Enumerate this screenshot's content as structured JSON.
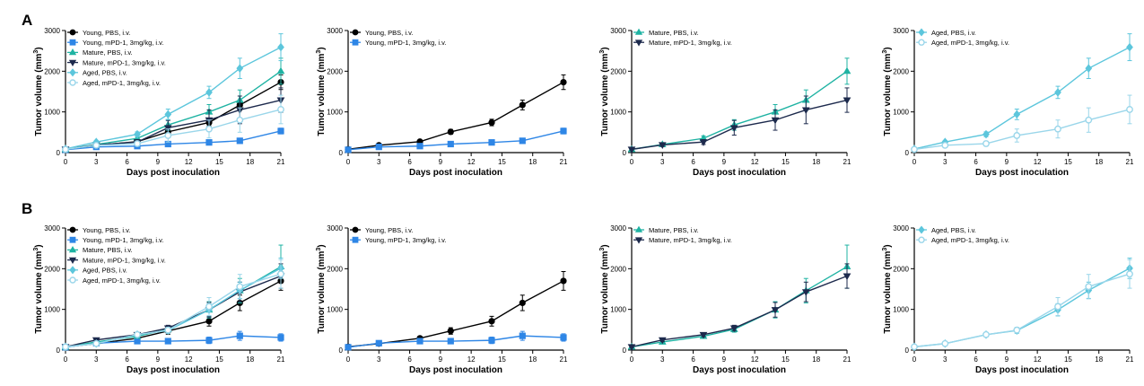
{
  "panel_labels": [
    "A",
    "B"
  ],
  "styles": {
    "young_pbs": {
      "color": "#000000",
      "marker": "circle",
      "filled": true
    },
    "young_pd1": {
      "color": "#2e86e6",
      "marker": "square",
      "filled": true
    },
    "mature_pbs": {
      "color": "#1fb3a3",
      "marker": "triangle-up",
      "filled": true
    },
    "mature_pd1": {
      "color": "#1d2a4d",
      "marker": "triangle-down",
      "filled": true
    },
    "aged_pbs": {
      "color": "#5cc6dc",
      "marker": "diamond",
      "filled": true
    },
    "aged_pd1": {
      "color": "#9ad6ea",
      "marker": "circle",
      "filled": false
    }
  },
  "chart_data": [
    {
      "type": "line",
      "row": "A",
      "xlabel": "Days post inoculation",
      "ylabel": "Tumor volume (mm",
      "ylabel_sup": "3",
      "ylabel_end": ")",
      "xlim": [
        0,
        21
      ],
      "ylim": [
        0,
        3000
      ],
      "xticks": [
        "0",
        "3",
        "6",
        "9",
        "12",
        "15",
        "18",
        "21"
      ],
      "yticks": [
        "0",
        "1000",
        "2000",
        "3000"
      ],
      "x": [
        0,
        3,
        7,
        10,
        14,
        17,
        21
      ],
      "series": [
        {
          "name": "Young, PBS, i.v.",
          "style": "young_pbs",
          "values": [
            80,
            180,
            270,
            510,
            740,
            1170,
            1730
          ],
          "errors": [
            20,
            30,
            40,
            60,
            80,
            120,
            180
          ]
        },
        {
          "name": "Young, mPD-1, 3mg/kg, i.v.",
          "style": "young_pd1",
          "values": [
            70,
            140,
            160,
            210,
            250,
            290,
            530
          ],
          "errors": [
            15,
            25,
            30,
            40,
            40,
            50,
            70
          ]
        },
        {
          "name": "Mature, PBS, i.v.",
          "style": "mature_pbs",
          "values": [
            80,
            200,
            350,
            680,
            1000,
            1290,
            2000
          ],
          "errors": [
            20,
            40,
            60,
            130,
            180,
            250,
            320
          ]
        },
        {
          "name": "Mature, mPD-1, 3mg/kg, i.v.",
          "style": "mature_pd1",
          "values": [
            80,
            190,
            260,
            610,
            800,
            1050,
            1290
          ],
          "errors": [
            20,
            40,
            60,
            180,
            250,
            340,
            300
          ]
        },
        {
          "name": "Aged, PBS, i.v.",
          "style": "aged_pbs",
          "values": [
            90,
            260,
            450,
            940,
            1480,
            2070,
            2590
          ],
          "errors": [
            20,
            40,
            60,
            130,
            150,
            250,
            330
          ]
        },
        {
          "name": "Aged, mPD-1, 3mg/kg, i.v.",
          "style": "aged_pd1",
          "values": [
            80,
            180,
            220,
            420,
            580,
            800,
            1060
          ],
          "errors": [
            20,
            40,
            60,
            160,
            220,
            300,
            350
          ]
        }
      ]
    },
    {
      "type": "line",
      "row": "A",
      "xlabel": "Days post inoculation",
      "ylabel": "Tumor volume (mm",
      "ylabel_sup": "3",
      "ylabel_end": ")",
      "xlim": [
        0,
        21
      ],
      "ylim": [
        0,
        3000
      ],
      "xticks": [
        "0",
        "3",
        "6",
        "9",
        "12",
        "15",
        "18",
        "21"
      ],
      "yticks": [
        "0",
        "1000",
        "2000",
        "3000"
      ],
      "x": [
        0,
        3,
        7,
        10,
        14,
        17,
        21
      ],
      "series": [
        {
          "name": "Young, PBS, i.v.",
          "style": "young_pbs",
          "values": [
            80,
            180,
            270,
            510,
            740,
            1170,
            1730
          ],
          "errors": [
            20,
            30,
            40,
            60,
            80,
            120,
            180
          ]
        },
        {
          "name": "Young, mPD-1, 3mg/kg, i.v.",
          "style": "young_pd1",
          "values": [
            70,
            140,
            160,
            210,
            250,
            290,
            530
          ],
          "errors": [
            15,
            25,
            30,
            40,
            40,
            50,
            70
          ]
        }
      ]
    },
    {
      "type": "line",
      "row": "A",
      "xlabel": "Days post inoculation",
      "ylabel": "Tumor volume (mm",
      "ylabel_sup": "3",
      "ylabel_end": ")",
      "xlim": [
        0,
        21
      ],
      "ylim": [
        0,
        3000
      ],
      "xticks": [
        "0",
        "3",
        "6",
        "9",
        "12",
        "15",
        "18",
        "21"
      ],
      "yticks": [
        "0",
        "1000",
        "2000",
        "3000"
      ],
      "x": [
        0,
        3,
        7,
        10,
        14,
        17,
        21
      ],
      "series": [
        {
          "name": "Mature, PBS, i.v.",
          "style": "mature_pbs",
          "values": [
            80,
            200,
            350,
            680,
            1000,
            1290,
            2000
          ],
          "errors": [
            20,
            40,
            60,
            130,
            180,
            250,
            320
          ]
        },
        {
          "name": "Mature, mPD-1, 3mg/kg, i.v.",
          "style": "mature_pd1",
          "values": [
            80,
            190,
            260,
            610,
            800,
            1050,
            1290
          ],
          "errors": [
            20,
            40,
            60,
            180,
            250,
            340,
            300
          ]
        }
      ]
    },
    {
      "type": "line",
      "row": "A",
      "xlabel": "Days post inoculation",
      "ylabel": "Tumor volume (mm",
      "ylabel_sup": "3",
      "ylabel_end": ")",
      "xlim": [
        0,
        21
      ],
      "ylim": [
        0,
        3000
      ],
      "xticks": [
        "0",
        "3",
        "6",
        "9",
        "12",
        "15",
        "18",
        "21"
      ],
      "yticks": [
        "0",
        "1000",
        "2000",
        "3000"
      ],
      "x": [
        0,
        3,
        7,
        10,
        14,
        17,
        21
      ],
      "series": [
        {
          "name": "Aged, PBS, i.v.",
          "style": "aged_pbs",
          "values": [
            90,
            260,
            450,
            940,
            1480,
            2070,
            2590
          ],
          "errors": [
            20,
            40,
            60,
            130,
            150,
            250,
            330
          ]
        },
        {
          "name": "Aged, mPD-1, 3mg/kg, i.v.",
          "style": "aged_pd1",
          "values": [
            80,
            180,
            220,
            420,
            580,
            800,
            1060
          ],
          "errors": [
            20,
            40,
            60,
            160,
            220,
            300,
            350
          ]
        }
      ]
    },
    {
      "type": "line",
      "row": "B",
      "xlabel": "Days post inoculation",
      "ylabel": "Tumor volume (mm",
      "ylabel_sup": "3",
      "ylabel_end": ")",
      "xlim": [
        0,
        21
      ],
      "ylim": [
        0,
        3000
      ],
      "xticks": [
        "0",
        "3",
        "6",
        "9",
        "12",
        "15",
        "18",
        "21"
      ],
      "yticks": [
        "0",
        "1000",
        "2000",
        "3000"
      ],
      "x": [
        0,
        3,
        7,
        10,
        14,
        17,
        21
      ],
      "series": [
        {
          "name": "Young, PBS, i.v.",
          "style": "young_pbs",
          "values": [
            80,
            160,
            290,
            470,
            710,
            1160,
            1700
          ],
          "errors": [
            20,
            30,
            40,
            80,
            120,
            190,
            230
          ]
        },
        {
          "name": "Young, mPD-1, 3mg/kg, i.v.",
          "style": "young_pd1",
          "values": [
            70,
            170,
            220,
            220,
            240,
            350,
            310
          ],
          "errors": [
            15,
            30,
            40,
            50,
            80,
            110,
            90
          ]
        },
        {
          "name": "Mature, PBS, i.v.",
          "style": "mature_pbs",
          "values": [
            80,
            200,
            340,
            510,
            990,
            1460,
            2050
          ],
          "errors": [
            20,
            30,
            50,
            70,
            200,
            300,
            530
          ]
        },
        {
          "name": "Mature, mPD-1, 3mg/kg, i.v.",
          "style": "mature_pd1",
          "values": [
            80,
            250,
            380,
            540,
            990,
            1430,
            1820
          ],
          "errors": [
            20,
            40,
            50,
            70,
            180,
            240,
            300
          ]
        },
        {
          "name": "Aged, PBS, i.v.",
          "style": "aged_pbs",
          "values": [
            80,
            160,
            380,
            480,
            990,
            1470,
            2010
          ],
          "errors": [
            20,
            30,
            50,
            70,
            150,
            200,
            250
          ]
        },
        {
          "name": "Aged, mPD-1, 3mg/kg, i.v.",
          "style": "aged_pd1",
          "values": [
            80,
            160,
            380,
            490,
            1070,
            1560,
            1870
          ],
          "errors": [
            20,
            30,
            50,
            70,
            220,
            300,
            350
          ]
        }
      ]
    },
    {
      "type": "line",
      "row": "B",
      "xlabel": "Days post inoculation",
      "ylabel": "Tumor volume (mm",
      "ylabel_sup": "3",
      "ylabel_end": ")",
      "xlim": [
        0,
        21
      ],
      "ylim": [
        0,
        3000
      ],
      "xticks": [
        "0",
        "3",
        "6",
        "9",
        "12",
        "15",
        "18",
        "21"
      ],
      "yticks": [
        "0",
        "1000",
        "2000",
        "3000"
      ],
      "x": [
        0,
        3,
        7,
        10,
        14,
        17,
        21
      ],
      "series": [
        {
          "name": "Young, PBS, i.v.",
          "style": "young_pbs",
          "values": [
            80,
            160,
            290,
            470,
            710,
            1160,
            1700
          ],
          "errors": [
            20,
            30,
            40,
            80,
            120,
            190,
            230
          ]
        },
        {
          "name": "Young, mPD-1, 3mg/kg, i.v.",
          "style": "young_pd1",
          "values": [
            70,
            170,
            220,
            220,
            240,
            350,
            310
          ],
          "errors": [
            15,
            30,
            40,
            50,
            80,
            110,
            90
          ]
        }
      ]
    },
    {
      "type": "line",
      "row": "B",
      "xlabel": "Days post inoculation",
      "ylabel": "Tumor volume (mm",
      "ylabel_sup": "3",
      "ylabel_end": ")",
      "xlim": [
        0,
        21
      ],
      "ylim": [
        0,
        3000
      ],
      "xticks": [
        "0",
        "3",
        "6",
        "9",
        "12",
        "15",
        "18",
        "21"
      ],
      "yticks": [
        "0",
        "1000",
        "2000",
        "3000"
      ],
      "x": [
        0,
        3,
        7,
        10,
        14,
        17,
        21
      ],
      "series": [
        {
          "name": "Mature, PBS, i.v.",
          "style": "mature_pbs",
          "values": [
            80,
            200,
            340,
            510,
            990,
            1460,
            2050
          ],
          "errors": [
            20,
            30,
            50,
            70,
            200,
            300,
            530
          ]
        },
        {
          "name": "Mature, mPD-1, 3mg/kg, i.v.",
          "style": "mature_pd1",
          "values": [
            80,
            250,
            380,
            540,
            990,
            1430,
            1820
          ],
          "errors": [
            20,
            40,
            50,
            70,
            180,
            240,
            300
          ]
        }
      ]
    },
    {
      "type": "line",
      "row": "B",
      "xlabel": "Days post inoculation",
      "ylabel": "Tumor volume (mm",
      "ylabel_sup": "3",
      "ylabel_end": ")",
      "xlim": [
        0,
        21
      ],
      "ylim": [
        0,
        3000
      ],
      "xticks": [
        "0",
        "3",
        "6",
        "9",
        "12",
        "15",
        "18",
        "21"
      ],
      "yticks": [
        "0",
        "1000",
        "2000",
        "3000"
      ],
      "x": [
        0,
        3,
        7,
        10,
        14,
        17,
        21
      ],
      "series": [
        {
          "name": "Aged, PBS, i.v.",
          "style": "aged_pbs",
          "values": [
            80,
            160,
            380,
            480,
            990,
            1470,
            2010
          ],
          "errors": [
            20,
            30,
            50,
            70,
            150,
            200,
            250
          ]
        },
        {
          "name": "Aged, mPD-1, 3mg/kg, i.v.",
          "style": "aged_pd1",
          "values": [
            80,
            160,
            380,
            490,
            1070,
            1560,
            1870
          ],
          "errors": [
            20,
            30,
            50,
            70,
            220,
            300,
            350
          ]
        }
      ]
    }
  ]
}
